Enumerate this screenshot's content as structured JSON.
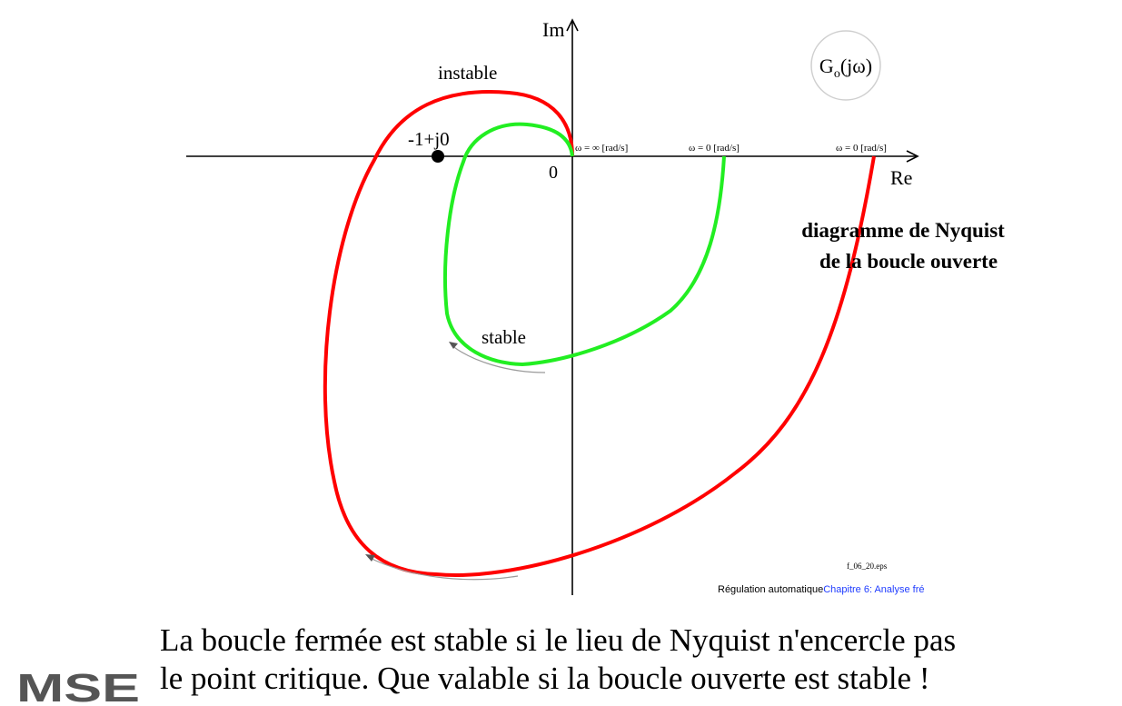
{
  "axes": {
    "im_label": "Im",
    "re_label": "Re",
    "origin_label": "0"
  },
  "function_label": {
    "base": "G",
    "subscript": "o",
    "arg": "(jω)"
  },
  "critical_point": {
    "label": "-1+j0"
  },
  "curves": {
    "unstable": {
      "label": "instable",
      "color": "#ff0000"
    },
    "stable": {
      "label": "stable",
      "color": "#22ee22"
    }
  },
  "omega_labels": {
    "infinity": "ω = ∞  [rad/s]",
    "zero_stable": "ω = 0 [rad/s]",
    "zero_unstable": "ω = 0 [rad/s]"
  },
  "diagram_title": {
    "line1": "diagramme de Nyquist",
    "line2": "de la boucle ouverte"
  },
  "file_name": "f_06_20.eps",
  "footer": {
    "course": "Régulation automatique",
    "chapter": "Chapitre 6: Analyse fré"
  },
  "caption": {
    "line1": "La boucle fermée est stable si le lieu de Nyquist n'encercle pas",
    "line2": "le point critique. Que valable si la boucle ouverte est stable !"
  },
  "logo": {
    "text": "MSE",
    "color": "#555555"
  }
}
